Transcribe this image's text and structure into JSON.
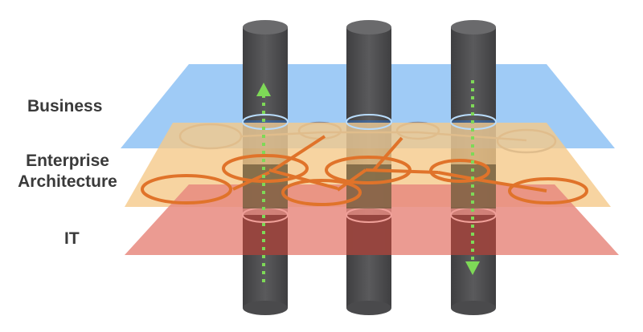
{
  "layers": {
    "business": {
      "label": "Business",
      "color": "#8ec2f5"
    },
    "ea": {
      "label_line1": "Enterprise",
      "label_line2": "Architecture",
      "color": "#f5c98a"
    },
    "it": {
      "label": "IT",
      "color": "#e88a7f"
    }
  },
  "colors": {
    "pillar": "#4e4e50",
    "pillar_top": "#5c5c5e",
    "network": "#e0732a",
    "network_faded": "#8c8c96",
    "arrow": "#7ed957"
  },
  "pillars": [
    {
      "id": "pillar-1",
      "arrow": "up"
    },
    {
      "id": "pillar-2",
      "arrow": "none"
    },
    {
      "id": "pillar-3",
      "arrow": "down"
    }
  ]
}
